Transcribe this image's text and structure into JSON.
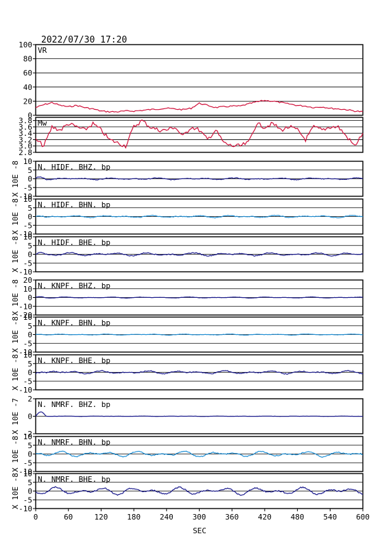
{
  "header": {
    "timestamp": "2022/07/30 17:20"
  },
  "chart_data": {
    "type": "line",
    "x_axis": {
      "label": "SEC",
      "ticks": [
        "0",
        "60",
        "120",
        "180",
        "240",
        "300",
        "360",
        "420",
        "480",
        "540",
        "600"
      ],
      "range": [
        0,
        600
      ]
    },
    "grid": true,
    "panels": [
      {
        "label": "VR",
        "color": "#d0103a",
        "range": [
          0,
          100
        ],
        "ticks": [
          "100",
          "80",
          "60",
          "40",
          "20",
          "0"
        ],
        "tick_values": [
          100,
          80,
          60,
          40,
          20,
          0
        ],
        "unit": "",
        "x": [
          0,
          15,
          30,
          45,
          60,
          75,
          90,
          105,
          120,
          135,
          150,
          165,
          180,
          195,
          210,
          225,
          240,
          255,
          270,
          285,
          300,
          315,
          330,
          345,
          360,
          375,
          390,
          405,
          420,
          435,
          450,
          465,
          480,
          495,
          510,
          525,
          540,
          555,
          570,
          585,
          600
        ],
        "values": [
          11,
          15,
          18,
          14,
          12,
          14,
          11,
          9,
          6,
          5,
          5,
          6,
          6,
          7,
          8,
          9,
          10,
          9,
          8,
          10,
          17,
          14,
          11,
          12,
          13,
          13,
          16,
          19,
          21,
          20,
          18,
          16,
          14,
          13,
          11,
          12,
          10,
          9,
          8,
          6,
          5
        ]
      },
      {
        "label": "Mw",
        "color": "#d0103a",
        "range": [
          2.8,
          3.9
        ],
        "ticks": [
          "3.8",
          "3.6",
          "3.4",
          "3.2",
          "3.0",
          "2.8"
        ],
        "tick_values": [
          3.8,
          3.6,
          3.4,
          3.2,
          3.0,
          2.8
        ],
        "unit": "",
        "x": [
          0,
          15,
          30,
          45,
          60,
          75,
          90,
          105,
          120,
          135,
          150,
          165,
          180,
          195,
          210,
          225,
          240,
          255,
          270,
          285,
          300,
          315,
          330,
          345,
          360,
          375,
          390,
          405,
          420,
          435,
          450,
          465,
          480,
          495,
          510,
          525,
          540,
          555,
          570,
          585,
          600
        ],
        "values": [
          3.2,
          3.0,
          3.6,
          3.5,
          3.7,
          3.6,
          3.5,
          3.7,
          3.5,
          3.2,
          3.1,
          3.0,
          3.6,
          3.8,
          3.6,
          3.5,
          3.5,
          3.6,
          3.3,
          3.6,
          3.5,
          3.2,
          3.5,
          3.1,
          3.0,
          3.0,
          3.1,
          3.7,
          3.6,
          3.7,
          3.5,
          3.6,
          3.5,
          3.2,
          3.6,
          3.5,
          3.6,
          3.6,
          3.3,
          3.0,
          3.4
        ]
      },
      {
        "label": "N. HIDF. BHZ. bp",
        "color": "#1a1a8c",
        "range": [
          -10,
          10
        ],
        "ticks": [
          "10",
          "5",
          "0",
          "-5",
          "-10"
        ],
        "tick_values": [
          10,
          5,
          0,
          -5,
          -10
        ],
        "unit": "X 10E -8",
        "amplitude": 0.5,
        "noise": 0.4,
        "spike": 1.0
      },
      {
        "label": "N. HIDF. BHN. bp",
        "color": "#1e8ed4",
        "range": [
          -10,
          10
        ],
        "ticks": [
          "10",
          "5",
          "0",
          "-5",
          "-10"
        ],
        "tick_values": [
          10,
          5,
          0,
          -5,
          -10
        ],
        "unit": "X 10E -8",
        "amplitude": 0.6,
        "noise": 0.4,
        "spike": 0.5
      },
      {
        "label": "N. HIDF. BHE. bp",
        "color": "#1a1a8c",
        "range": [
          -10,
          10
        ],
        "ticks": [
          "10",
          "5",
          "0",
          "-5",
          "-10"
        ],
        "tick_values": [
          10,
          5,
          0,
          -5,
          -10
        ],
        "unit": "X 10E -8",
        "amplitude": 0.9,
        "noise": 0.5,
        "spike": 1.2
      },
      {
        "label": "N. KNPF. BHZ. bp",
        "color": "#1a1a8c",
        "range": [
          -20,
          20
        ],
        "ticks": [
          "20",
          "10",
          "0",
          "-10",
          "-20"
        ],
        "tick_values": [
          20,
          10,
          0,
          -10,
          -20
        ],
        "unit": "X 10E -8",
        "amplitude": 0.6,
        "noise": 0.3,
        "spike": 0.8
      },
      {
        "label": "N. KNPF. BHN. bp",
        "color": "#1e8ed4",
        "range": [
          -10,
          10
        ],
        "ticks": [
          "10",
          "5",
          "0",
          "-5",
          "-10"
        ],
        "tick_values": [
          10,
          5,
          0,
          -5,
          -10
        ],
        "unit": "X 10E -8",
        "amplitude": 0.3,
        "noise": 0.2,
        "spike": 0.3
      },
      {
        "label": "N. KNPF. BHE. bp",
        "color": "#1a1a8c",
        "range": [
          -10,
          10
        ],
        "ticks": [
          "10",
          "5",
          "0",
          "-5",
          "-10"
        ],
        "tick_values": [
          10,
          5,
          0,
          -5,
          -10
        ],
        "unit": "X 10E -8",
        "amplitude": 0.9,
        "noise": 0.5,
        "spike": 0.8
      },
      {
        "label": "N. NMRF. BHZ. bp",
        "color": "#1a1a8c",
        "range": [
          -2,
          2
        ],
        "ticks": [
          "2",
          "0",
          "-2"
        ],
        "tick_values": [
          2,
          0,
          -2
        ],
        "unit": "X 10E -7",
        "amplitude": 0.02,
        "noise": 0.02,
        "spike": 0.5
      },
      {
        "label": "N. NMRF. BHN. bp",
        "color": "#1e8ed4",
        "range": [
          -10,
          10
        ],
        "ticks": [
          "10",
          "5",
          "0",
          "-5",
          "-10"
        ],
        "tick_values": [
          10,
          5,
          0,
          -5,
          -10
        ],
        "unit": "X 10E -8",
        "amplitude": 1.6,
        "noise": 0.6,
        "spike": 0.5
      },
      {
        "label": "N. NMRF. BHE. bp",
        "color": "#1a1a8c",
        "range": [
          -10,
          10
        ],
        "ticks": [
          "10",
          "5",
          "0",
          "-5",
          "-10"
        ],
        "tick_values": [
          10,
          5,
          0,
          -5,
          -10
        ],
        "unit": "X 10E -8",
        "amplitude": 2.2,
        "noise": 0.7,
        "spike": 0.5
      }
    ]
  }
}
